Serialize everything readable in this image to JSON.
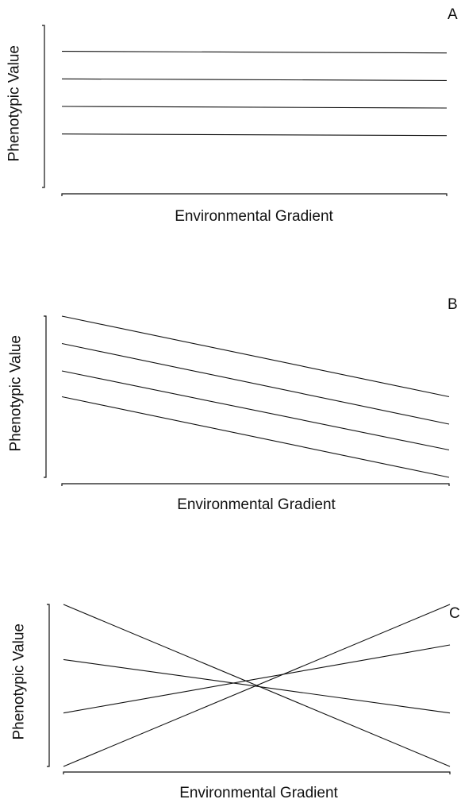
{
  "chart_data": [
    {
      "type": "line",
      "panel_label": "A",
      "xlabel": "Environmental Gradient",
      "ylabel": "Phenotypic Value",
      "xlim": [
        0,
        1
      ],
      "ylim": [
        0,
        1
      ],
      "grid": false,
      "series": [
        {
          "x": [
            0,
            1
          ],
          "y": [
            0.84,
            0.83
          ]
        },
        {
          "x": [
            0,
            1
          ],
          "y": [
            0.67,
            0.66
          ]
        },
        {
          "x": [
            0,
            1
          ],
          "y": [
            0.5,
            0.49
          ]
        },
        {
          "x": [
            0,
            1
          ],
          "y": [
            0.33,
            0.32
          ]
        }
      ]
    },
    {
      "type": "line",
      "panel_label": "B",
      "xlabel": "Environmental Gradient",
      "ylabel": "Phenotypic Value",
      "xlim": [
        0,
        1
      ],
      "ylim": [
        0,
        1
      ],
      "grid": false,
      "series": [
        {
          "x": [
            0,
            1
          ],
          "y": [
            1.0,
            0.5
          ]
        },
        {
          "x": [
            0,
            1
          ],
          "y": [
            0.83,
            0.33
          ]
        },
        {
          "x": [
            0,
            1
          ],
          "y": [
            0.66,
            0.17
          ]
        },
        {
          "x": [
            0,
            1
          ],
          "y": [
            0.5,
            0.0
          ]
        }
      ]
    },
    {
      "type": "line",
      "panel_label": "C",
      "xlabel": "Environmental Gradient",
      "ylabel": "Phenotypic Value",
      "xlim": [
        0,
        1
      ],
      "ylim": [
        0,
        1
      ],
      "grid": false,
      "series": [
        {
          "x": [
            0,
            1
          ],
          "y": [
            1.0,
            0.0
          ]
        },
        {
          "x": [
            0,
            1
          ],
          "y": [
            0.66,
            0.33
          ]
        },
        {
          "x": [
            0,
            1
          ],
          "y": [
            0.33,
            0.75
          ]
        },
        {
          "x": [
            0,
            1
          ],
          "y": [
            0.0,
            1.0
          ]
        }
      ]
    }
  ]
}
